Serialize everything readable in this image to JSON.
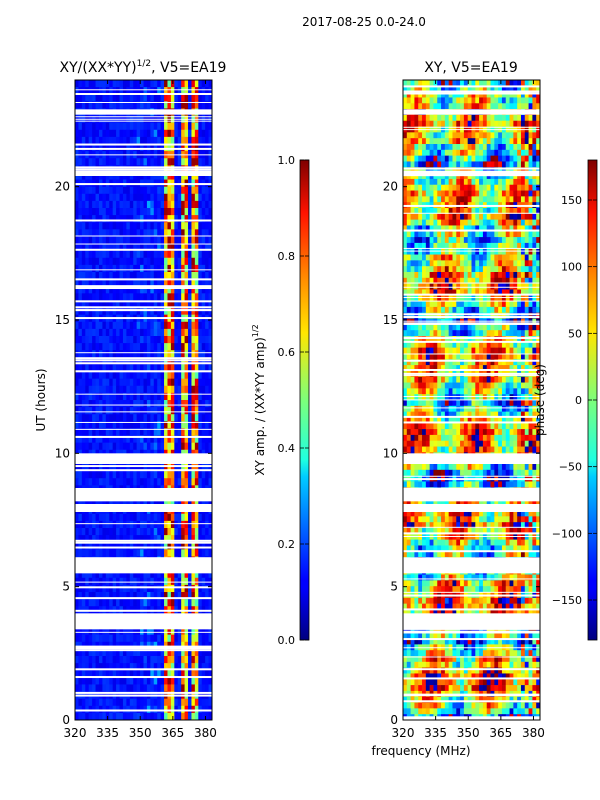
{
  "figure_title": "2017-08-25 0.0-24.0",
  "shared_xlabel": "frequency (MHz)",
  "chart_data": [
    {
      "type": "heatmap",
      "title": "XY/(XX*YY)$^{1/2}$, V5=EA19",
      "title_main": "XY/(XX*YY)",
      "title_sup": "1/2",
      "title_tail": ", V5=EA19",
      "xlabel": "frequency (MHz)",
      "ylabel": "UT (hours)",
      "xlim": [
        320,
        383
      ],
      "ylim": [
        0,
        24
      ],
      "xticks": [
        320,
        335,
        350,
        365,
        380
      ],
      "yticks": [
        0,
        5,
        10,
        15,
        20
      ],
      "colorbar": {
        "label": "XY amp. / (XX*YY amp)$^{1/2}$",
        "label_main": "XY amp. / (XX*YY amp)",
        "label_sup": "1/2",
        "range": [
          0.0,
          1.0
        ],
        "ticks": [
          "0.0",
          "0.2",
          "0.4",
          "0.6",
          "0.8",
          "1.0"
        ],
        "tick_values": [
          0.0,
          0.2,
          0.4,
          0.6,
          0.8,
          1.0
        ],
        "colormap": "jet"
      },
      "bright_bands_mhz": [
        [
          361,
          362
        ],
        [
          363,
          366
        ],
        [
          367,
          368
        ],
        [
          369,
          370
        ],
        [
          371,
          372
        ],
        [
          374,
          376
        ]
      ],
      "gaps_hours": [
        [
          3.4,
          4.0
        ],
        [
          5.5,
          6.1
        ],
        [
          7.8,
          8.1
        ],
        [
          8.2,
          8.7
        ],
        [
          9.6,
          10.0
        ],
        [
          20.4,
          20.6
        ],
        [
          22.7,
          22.9
        ]
      ],
      "background_value": 0.1
    },
    {
      "type": "heatmap",
      "title": "XY, V5=EA19",
      "xlabel": "frequency (MHz)",
      "ylabel": "",
      "xlim": [
        320,
        383
      ],
      "ylim": [
        0,
        24
      ],
      "xticks": [
        320,
        335,
        350,
        365,
        380
      ],
      "yticks": [
        0,
        5,
        10,
        15,
        20
      ],
      "colorbar": {
        "label": "phase (deg)",
        "range": [
          -180,
          180
        ],
        "ticks": [
          "−150",
          "−100",
          "−50",
          "0",
          "50",
          "100",
          "150"
        ],
        "tick_values": [
          -150,
          -100,
          -50,
          0,
          50,
          100,
          150
        ],
        "colormap": "jet"
      },
      "gaps_hours": [
        [
          3.4,
          4.0
        ],
        [
          5.5,
          6.1
        ],
        [
          7.8,
          8.1
        ],
        [
          8.2,
          8.7
        ],
        [
          9.6,
          10.0
        ],
        [
          20.4,
          20.6
        ],
        [
          22.7,
          22.9
        ]
      ]
    }
  ]
}
